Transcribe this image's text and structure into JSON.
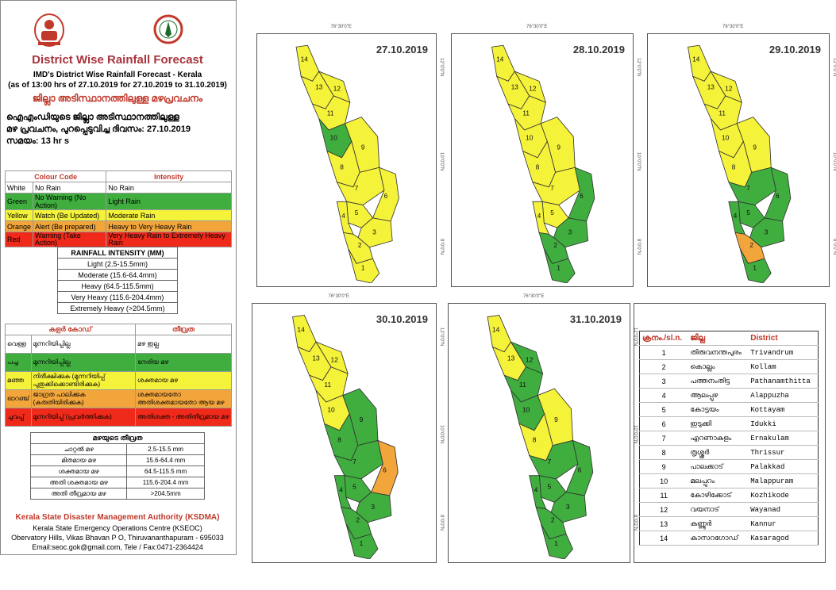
{
  "header": {
    "title": "District Wise Rainfall Forecast",
    "subtitle1": "IMD's District Wise Rainfall Forecast - Kerala",
    "subtitle2": "(as of 13:00 hrs of 27.10.2019  for 27.10.2019  to 31.10.2019)",
    "malayalam_title": "ജില്ലാ അടിസ്ഥാനത്തിലുള്ള മഴപ്രവചനം",
    "malayalam_line1": "ഐഎംഡിയുടെ ജില്ലാ അടിസ്ഥാനത്തിലുള്ള",
    "malayalam_line2": "മഴ പ്രവചനം, പുറപ്പെടുവിച്ച ദിവസം: 27.10.2019",
    "malayalam_line3": "സമയം: 13 hr s"
  },
  "colour_code": {
    "headers": [
      "Colour Code",
      "Intensity"
    ],
    "rows": [
      {
        "colour": "White",
        "code": "No Rain",
        "intensity": "No Rain",
        "bg": "#ffffff"
      },
      {
        "colour": "Green",
        "code": "No Warning (No Action)",
        "intensity": "Light Rain",
        "bg": "#3fae3f"
      },
      {
        "colour": "Yellow",
        "code": "Watch (Be Updated)",
        "intensity": "Moderate Rain",
        "bg": "#f5f23a"
      },
      {
        "colour": "Orange",
        "code": "Alert (Be prepared)",
        "intensity": "Heavy to Very Heavy Rain",
        "bg": "#f2a53b"
      },
      {
        "colour": "Red",
        "code": "Warning (Take Action)",
        "intensity": "Very Heavy Rain to Extremely Heavy Rain",
        "bg": "#ef2a1b"
      }
    ]
  },
  "rainfall_intensity": {
    "header": "RAINFALL INTENSITY (MM)",
    "rows": [
      "Light (2.5-15.5mm)",
      "Moderate (15.6-64.4mm)",
      "Heavy (64.5-115.5mm)",
      "Very Heavy (115.6-204.4mm)",
      "Extremely Heavy (>204.5mm)"
    ]
  },
  "ml_colour_code": {
    "headers": [
      "കളർ കോഡ്",
      "തീവ്രത"
    ],
    "rows": [
      {
        "colour": "വെള്ള",
        "code": "മുന്നറിയിപ്പില്ല",
        "intensity": "മഴ ഇല്ല",
        "bg": "#ffffff"
      },
      {
        "colour": "പച്ച",
        "code": "മുന്നറിയിപ്പില്ല",
        "intensity": "നേരിയ മഴ",
        "bg": "#3fae3f"
      },
      {
        "colour": "മഞ്ഞ",
        "code": "നിരീക്ഷിക്കുക (മുന്നറിയിപ്പ് പുതുക്കിക്കൊണ്ടിരിക്കുക)",
        "intensity": "ശക്തമായ മഴ",
        "bg": "#f5f23a"
      },
      {
        "colour": "ഓറഞ്ച്",
        "code": "ജാഗ്രത പാലിക്കുക (കരുതിയിരിക്കുക)",
        "intensity": "ശക്തമായതോ അതിശക്തമായതോ ആയ മഴ",
        "bg": "#f2a53b"
      },
      {
        "colour": "ചുവപ്പ്",
        "code": "മുന്നറിയിപ്പ് (പ്രവർത്തിക്കുക)",
        "intensity": "അതിശക്ത - അതിതീവ്രമായ മഴ",
        "bg": "#ef2a1b"
      }
    ]
  },
  "ml_intensity": {
    "header": "മഴയുടെ തീവ്രത",
    "rows": [
      {
        "label": "ചാറ്റൽ മഴ",
        "value": "2.5-15.5 mm"
      },
      {
        "label": "മിതമായ മഴ",
        "value": "15.6-64.4 mm"
      },
      {
        "label": "ശക്തമായ മഴ",
        "value": "64.5-115.5 mm"
      },
      {
        "label": "അതി ശക്തമായ മഴ",
        "value": "115.6-204.4 mm"
      },
      {
        "label": "അതി തീവ്രമായ മഴ",
        "value": ">204.5mm"
      }
    ]
  },
  "footer": {
    "org": "Kerala State Disaster Management Authority (KSDMA)",
    "line1": "Kerala State Emergency Operations Centre (KSEOC)",
    "line2": "Obervatory Hills, Vikas Bhavan P O, Thiruvananthapuram - 695033",
    "line3": "Email:seoc.gok@gmail.com, Tele / Fax:0471-2364424"
  },
  "axis_ticks": {
    "top": "76°30'0\"E",
    "right_top": "12°0'0\"N",
    "right_mid": "10°0'0\"N",
    "right_bot": "8°0'0\"N"
  },
  "colors": {
    "1": "#3fae3f",
    "2": "#f5f23a",
    "3": "#f2a53b",
    "4": "#ef2a1b"
  },
  "maps": [
    {
      "date": "27.10.2019",
      "levels": [
        2,
        2,
        2,
        2,
        2,
        2,
        2,
        2,
        2,
        1,
        2,
        2,
        2,
        2
      ]
    },
    {
      "date": "28.10.2019",
      "levels": [
        1,
        1,
        1,
        2,
        2,
        1,
        2,
        2,
        2,
        2,
        2,
        2,
        2,
        2
      ]
    },
    {
      "date": "29.10.2019",
      "levels": [
        1,
        3,
        1,
        1,
        1,
        1,
        1,
        2,
        2,
        2,
        2,
        2,
        2,
        2
      ]
    },
    {
      "date": "30.10.2019",
      "levels": [
        1,
        1,
        1,
        1,
        1,
        3,
        1,
        1,
        1,
        2,
        2,
        2,
        2,
        2
      ]
    },
    {
      "date": "31.10.2019",
      "levels": [
        1,
        1,
        1,
        1,
        1,
        1,
        1,
        2,
        2,
        1,
        1,
        1,
        2,
        2
      ]
    }
  ],
  "districts": {
    "headers": [
      "ക്രനം./sl.n.",
      "ജില്ല",
      "District"
    ],
    "rows": [
      {
        "n": "1",
        "ml": "തിരുവനന്തപുരം",
        "en": "Trivandrum"
      },
      {
        "n": "2",
        "ml": "കൊല്ലം",
        "en": "Kollam"
      },
      {
        "n": "3",
        "ml": "പത്തനംതിട്ട",
        "en": "Pathanamthitta"
      },
      {
        "n": "4",
        "ml": "ആലപ്പുഴ",
        "en": "Alappuzha"
      },
      {
        "n": "5",
        "ml": "കോട്ടയം",
        "en": "Kottayam"
      },
      {
        "n": "6",
        "ml": "ഇടുക്കി",
        "en": "Idukki"
      },
      {
        "n": "7",
        "ml": "എറണാകുളം",
        "en": "Ernakulam"
      },
      {
        "n": "8",
        "ml": "തൃശ്ശൂർ",
        "en": "Thrissur"
      },
      {
        "n": "9",
        "ml": "പാലക്കാട്",
        "en": "Palakkad"
      },
      {
        "n": "10",
        "ml": "മലപ്പുറം",
        "en": "Malappuram"
      },
      {
        "n": "11",
        "ml": "കോഴിക്കോട്",
        "en": "Kozhikode"
      },
      {
        "n": "12",
        "ml": "വയനാട്",
        "en": "Wayanad"
      },
      {
        "n": "13",
        "ml": "കണ്ണൂർ",
        "en": "Kannur"
      },
      {
        "n": "14",
        "ml": "കാസറഗോഡ്",
        "en": "Kasaragod"
      }
    ]
  }
}
